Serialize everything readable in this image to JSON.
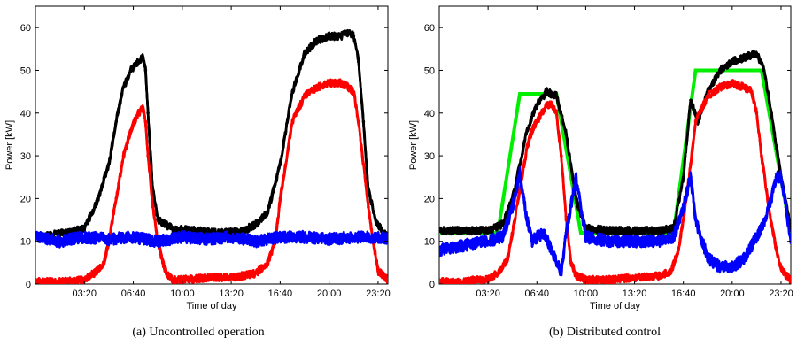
{
  "chart_data": [
    {
      "type": "scatter",
      "caption": "(a) Uncontrolled operation",
      "xlabel": "Time of day",
      "ylabel": "Power [kW]",
      "xlim": [
        0,
        1440
      ],
      "ylim": [
        0,
        65
      ],
      "x_unit": "minutes since 00:00",
      "xticks": [
        200,
        400,
        600,
        800,
        1000,
        1200,
        1400
      ],
      "xtick_labels": [
        "03:20",
        "06:40",
        "10:00",
        "13:20",
        "16:40",
        "20:00",
        "23:20"
      ],
      "yticks": [
        0,
        10,
        20,
        30,
        40,
        50,
        60
      ],
      "grid": false,
      "series": [
        {
          "color": "#000000",
          "x": [
            0,
            60,
            120,
            200,
            250,
            300,
            330,
            360,
            390,
            420,
            440,
            450,
            460,
            480,
            500,
            560,
            650,
            750,
            850,
            900,
            950,
            1000,
            1050,
            1100,
            1150,
            1200,
            1250,
            1280,
            1300,
            1320,
            1340,
            1360,
            1390,
            1420,
            1440
          ],
          "y": [
            11,
            11.5,
            12,
            13,
            19,
            28,
            38,
            46,
            50,
            52,
            53,
            50,
            40,
            22,
            15,
            13,
            12.5,
            12,
            12.5,
            14,
            17,
            28,
            45,
            54,
            57,
            58,
            58,
            59,
            58,
            52,
            38,
            22,
            15,
            12,
            11
          ]
        },
        {
          "color": "#ff0000",
          "x": [
            0,
            100,
            150,
            200,
            250,
            280,
            300,
            330,
            360,
            390,
            420,
            440,
            450,
            460,
            480,
            500,
            520,
            540,
            560,
            600,
            700,
            800,
            850,
            900,
            950,
            980,
            1000,
            1050,
            1100,
            1150,
            1200,
            1250,
            1280,
            1300,
            1320,
            1340,
            1360,
            1380,
            1400,
            1440
          ],
          "y": [
            0.5,
            0.5,
            0.7,
            1,
            3,
            5,
            10,
            20,
            30,
            36,
            40,
            41,
            38,
            30,
            18,
            10,
            5,
            2,
            1,
            1,
            1.5,
            1.5,
            2,
            2.5,
            5,
            10,
            20,
            38,
            44,
            46,
            47,
            47,
            46,
            45,
            38,
            28,
            18,
            10,
            3,
            1
          ]
        },
        {
          "color": "#0000ff",
          "x": [
            0,
            100,
            200,
            300,
            400,
            500,
            600,
            700,
            800,
            900,
            1000,
            1100,
            1200,
            1300,
            1400,
            1440
          ],
          "y": [
            11,
            10,
            11,
            10.5,
            11,
            10,
            11,
            10.5,
            11,
            10,
            11,
            11,
            10.5,
            11,
            11,
            10.5
          ]
        }
      ]
    },
    {
      "type": "scatter",
      "caption": "(b) Distributed control",
      "xlabel": "Time of day",
      "ylabel": "Power [kW]",
      "xlim": [
        0,
        1440
      ],
      "ylim": [
        0,
        65
      ],
      "x_unit": "minutes since 00:00",
      "xticks": [
        200,
        400,
        600,
        800,
        1000,
        1200,
        1400
      ],
      "xtick_labels": [
        "03:20",
        "06:40",
        "10:00",
        "13:20",
        "16:40",
        "20:00",
        "23:20"
      ],
      "yticks": [
        0,
        10,
        20,
        30,
        40,
        50,
        60
      ],
      "grid": false,
      "series": [
        {
          "color": "#00ee00",
          "x": [
            0,
            240,
            330,
            480,
            580,
            960,
            1050,
            1320,
            1440
          ],
          "y": [
            12,
            12,
            44.5,
            44.5,
            12,
            12,
            50,
            50,
            12
          ]
        },
        {
          "color": "#000000",
          "x": [
            0,
            100,
            200,
            260,
            300,
            330,
            360,
            400,
            440,
            480,
            520,
            560,
            600,
            700,
            800,
            900,
            960,
            1000,
            1030,
            1060,
            1100,
            1150,
            1200,
            1250,
            1300,
            1330,
            1360,
            1400,
            1440
          ],
          "y": [
            12.5,
            12.5,
            12.5,
            14,
            20,
            28,
            36,
            42,
            45,
            44,
            35,
            20,
            13,
            12.5,
            12.5,
            12.5,
            13,
            25,
            43,
            38,
            45,
            50,
            52,
            53,
            54,
            50,
            40,
            25,
            13
          ]
        },
        {
          "color": "#ff0000",
          "x": [
            0,
            100,
            150,
            200,
            250,
            280,
            300,
            330,
            360,
            380,
            400,
            420,
            440,
            460,
            480,
            500,
            520,
            540,
            560,
            600,
            700,
            800,
            900,
            950,
            980,
            1000,
            1030,
            1050,
            1100,
            1150,
            1200,
            1250,
            1280,
            1300,
            1320,
            1350,
            1380,
            1400,
            1420,
            1440
          ],
          "y": [
            0.5,
            0.5,
            1,
            1,
            3,
            6,
            12,
            22,
            32,
            36,
            38,
            40,
            42,
            42,
            40,
            30,
            15,
            5,
            2,
            1,
            1,
            1.5,
            2,
            3,
            8,
            15,
            28,
            38,
            44,
            46,
            47,
            46,
            45,
            40,
            30,
            18,
            8,
            4,
            2,
            1
          ]
        },
        {
          "color": "#0000ff",
          "x": [
            0,
            100,
            200,
            260,
            300,
            330,
            360,
            380,
            400,
            430,
            460,
            480,
            500,
            520,
            560,
            600,
            700,
            800,
            900,
            960,
            1000,
            1030,
            1050,
            1100,
            1150,
            1200,
            1250,
            1300,
            1330,
            1360,
            1380,
            1400,
            1420,
            1440
          ],
          "y": [
            8,
            9,
            10,
            11,
            18,
            26,
            15,
            10,
            11,
            12,
            8,
            5,
            3,
            12,
            25,
            11,
            10,
            10,
            10,
            11,
            18,
            25,
            15,
            6,
            4,
            4,
            6,
            11,
            14,
            20,
            25,
            25,
            18,
            10
          ]
        }
      ]
    }
  ]
}
